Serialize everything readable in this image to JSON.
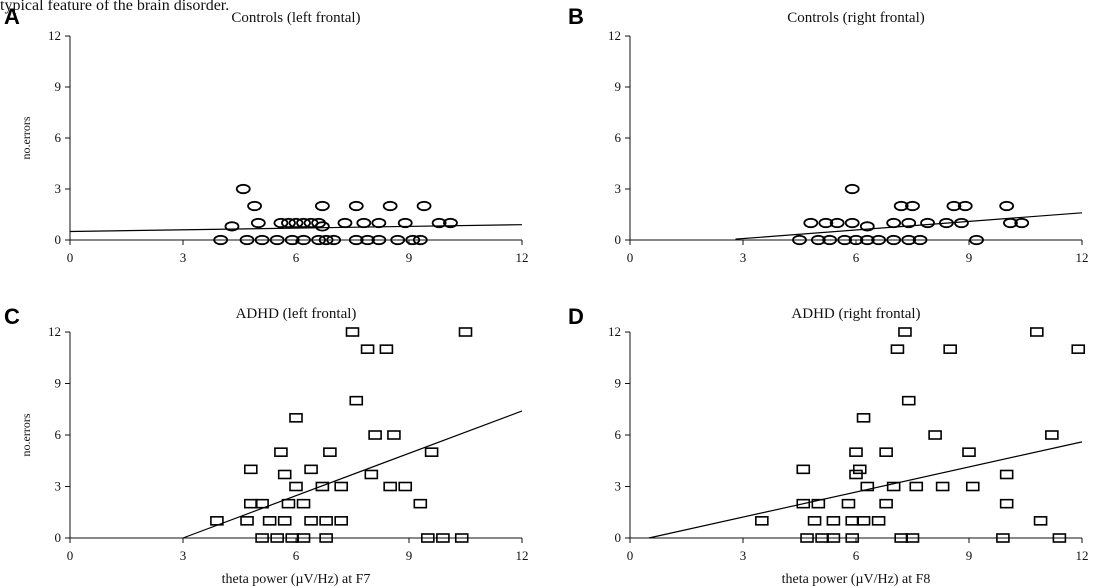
{
  "caption_fragment": "typical feature of the brain disorder.",
  "chart_data": [
    {
      "panel": "A",
      "type": "scatter",
      "title": "Controls (left frontal)",
      "xlabel": "",
      "ylabel": "no.errors",
      "xlim": [
        0,
        12
      ],
      "ylim": [
        0,
        12
      ],
      "xticks": [
        0,
        3,
        6,
        9,
        12
      ],
      "yticks": [
        0,
        3,
        6,
        9,
        12
      ],
      "marker": "circle",
      "regression": {
        "x": [
          0,
          12
        ],
        "y": [
          0.5,
          0.9
        ]
      },
      "points": [
        [
          4.0,
          0
        ],
        [
          4.7,
          0
        ],
        [
          5.1,
          0
        ],
        [
          5.5,
          0
        ],
        [
          5.9,
          0
        ],
        [
          6.2,
          0
        ],
        [
          6.6,
          0
        ],
        [
          6.8,
          0
        ],
        [
          7.0,
          0
        ],
        [
          7.6,
          0
        ],
        [
          7.9,
          0
        ],
        [
          8.2,
          0
        ],
        [
          8.7,
          0
        ],
        [
          9.1,
          0
        ],
        [
          9.3,
          0
        ],
        [
          4.3,
          0.8
        ],
        [
          6.7,
          0.8
        ],
        [
          5.0,
          1
        ],
        [
          5.6,
          1
        ],
        [
          5.8,
          1
        ],
        [
          6.0,
          1
        ],
        [
          6.2,
          1
        ],
        [
          6.4,
          1
        ],
        [
          6.6,
          1
        ],
        [
          7.3,
          1
        ],
        [
          7.8,
          1
        ],
        [
          8.2,
          1
        ],
        [
          8.9,
          1
        ],
        [
          9.8,
          1
        ],
        [
          10.1,
          1
        ],
        [
          4.9,
          2
        ],
        [
          6.7,
          2
        ],
        [
          7.6,
          2
        ],
        [
          8.5,
          2
        ],
        [
          9.4,
          2
        ],
        [
          4.6,
          3
        ]
      ]
    },
    {
      "panel": "B",
      "type": "scatter",
      "title": "Controls (right frontal)",
      "xlabel": "",
      "ylabel": "",
      "xlim": [
        0,
        12
      ],
      "ylim": [
        0,
        12
      ],
      "xticks": [
        0,
        3,
        6,
        9,
        12
      ],
      "yticks": [
        0,
        3,
        6,
        9,
        12
      ],
      "marker": "circle",
      "regression": {
        "x": [
          2.8,
          12
        ],
        "y": [
          0.05,
          1.6
        ]
      },
      "points": [
        [
          4.5,
          0
        ],
        [
          5.0,
          0
        ],
        [
          5.3,
          0
        ],
        [
          5.7,
          0
        ],
        [
          6.0,
          0
        ],
        [
          6.3,
          0
        ],
        [
          6.6,
          0
        ],
        [
          7.0,
          0
        ],
        [
          7.4,
          0
        ],
        [
          7.7,
          0
        ],
        [
          9.2,
          0
        ],
        [
          6.3,
          0.8
        ],
        [
          4.8,
          1
        ],
        [
          5.2,
          1
        ],
        [
          5.5,
          1
        ],
        [
          5.9,
          1
        ],
        [
          7.0,
          1
        ],
        [
          7.4,
          1
        ],
        [
          7.9,
          1
        ],
        [
          8.4,
          1
        ],
        [
          8.8,
          1
        ],
        [
          10.1,
          1
        ],
        [
          10.4,
          1
        ],
        [
          7.2,
          2
        ],
        [
          7.5,
          2
        ],
        [
          8.6,
          2
        ],
        [
          8.9,
          2
        ],
        [
          10.0,
          2
        ],
        [
          5.9,
          3
        ]
      ]
    },
    {
      "panel": "C",
      "type": "scatter",
      "title": "ADHD (left frontal)",
      "xlabel": "theta power (µV/Hz) at F7",
      "ylabel": "no.errors",
      "xlim": [
        0,
        12
      ],
      "ylim": [
        0,
        12
      ],
      "xticks": [
        0,
        3,
        6,
        9,
        12
      ],
      "yticks": [
        0,
        3,
        6,
        9,
        12
      ],
      "marker": "square",
      "regression": {
        "x": [
          3.0,
          12
        ],
        "y": [
          0,
          7.4
        ]
      },
      "points": [
        [
          5.1,
          0
        ],
        [
          5.5,
          0
        ],
        [
          5.9,
          0
        ],
        [
          6.2,
          0
        ],
        [
          6.8,
          0
        ],
        [
          9.5,
          0
        ],
        [
          9.9,
          0
        ],
        [
          10.4,
          0
        ],
        [
          3.9,
          1
        ],
        [
          4.7,
          1
        ],
        [
          5.3,
          1
        ],
        [
          5.7,
          1
        ],
        [
          6.4,
          1
        ],
        [
          6.8,
          1
        ],
        [
          7.2,
          1
        ],
        [
          4.8,
          2
        ],
        [
          5.1,
          2
        ],
        [
          5.8,
          2
        ],
        [
          6.2,
          2
        ],
        [
          9.3,
          2
        ],
        [
          6.0,
          3
        ],
        [
          6.7,
          3
        ],
        [
          7.2,
          3
        ],
        [
          8.5,
          3
        ],
        [
          8.9,
          3
        ],
        [
          5.7,
          3.7
        ],
        [
          8.0,
          3.7
        ],
        [
          4.8,
          4
        ],
        [
          6.4,
          4
        ],
        [
          5.6,
          5
        ],
        [
          6.9,
          5
        ],
        [
          9.6,
          5
        ],
        [
          6.0,
          7
        ],
        [
          8.1,
          6
        ],
        [
          8.6,
          6
        ],
        [
          7.6,
          8
        ],
        [
          7.9,
          11
        ],
        [
          8.4,
          11
        ],
        [
          7.5,
          12
        ],
        [
          10.5,
          12
        ]
      ]
    },
    {
      "panel": "D",
      "type": "scatter",
      "title": "ADHD (right frontal)",
      "xlabel": "theta power (µV/Hz) at F8",
      "ylabel": "",
      "xlim": [
        0,
        12
      ],
      "ylim": [
        0,
        12
      ],
      "xticks": [
        0,
        3,
        6,
        9,
        12
      ],
      "yticks": [
        0,
        3,
        6,
        9,
        12
      ],
      "marker": "square",
      "regression": {
        "x": [
          0.5,
          12
        ],
        "y": [
          0,
          5.6
        ]
      },
      "points": [
        [
          4.7,
          0
        ],
        [
          5.1,
          0
        ],
        [
          5.4,
          0
        ],
        [
          5.9,
          0
        ],
        [
          7.2,
          0
        ],
        [
          7.5,
          0
        ],
        [
          9.9,
          0
        ],
        [
          11.4,
          0
        ],
        [
          3.5,
          1
        ],
        [
          4.9,
          1
        ],
        [
          5.4,
          1
        ],
        [
          5.9,
          1
        ],
        [
          6.2,
          1
        ],
        [
          6.6,
          1
        ],
        [
          10.9,
          1
        ],
        [
          4.6,
          2
        ],
        [
          5.0,
          2
        ],
        [
          5.8,
          2
        ],
        [
          6.8,
          2
        ],
        [
          10.0,
          2
        ],
        [
          6.3,
          3
        ],
        [
          7.0,
          3
        ],
        [
          7.6,
          3
        ],
        [
          8.3,
          3
        ],
        [
          9.1,
          3
        ],
        [
          6.0,
          3.7
        ],
        [
          10.0,
          3.7
        ],
        [
          4.6,
          4
        ],
        [
          6.1,
          4
        ],
        [
          6.0,
          5
        ],
        [
          6.8,
          5
        ],
        [
          9.0,
          5
        ],
        [
          6.2,
          7
        ],
        [
          8.1,
          6
        ],
        [
          11.2,
          6
        ],
        [
          7.4,
          8
        ],
        [
          7.1,
          11
        ],
        [
          8.5,
          11
        ],
        [
          11.9,
          11
        ],
        [
          7.3,
          12
        ],
        [
          10.8,
          12
        ]
      ]
    }
  ]
}
